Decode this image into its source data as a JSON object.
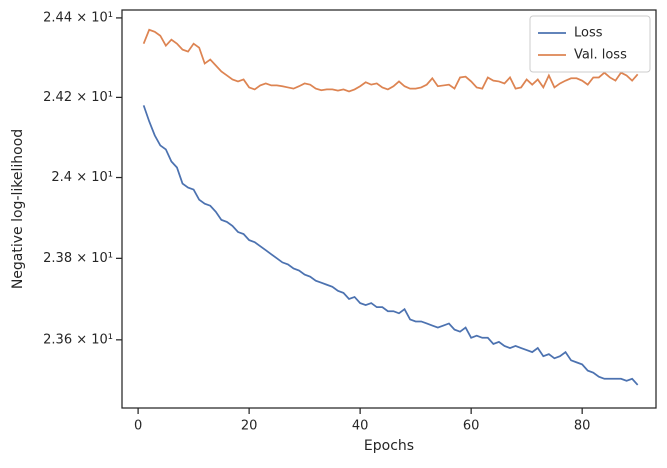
{
  "chart_data": {
    "type": "line",
    "xlabel": "Epochs",
    "ylabel": "Negative log-likelihood",
    "x": [
      1,
      2,
      3,
      4,
      5,
      6,
      7,
      8,
      9,
      10,
      11,
      12,
      13,
      14,
      15,
      16,
      17,
      18,
      19,
      20,
      21,
      22,
      23,
      24,
      25,
      26,
      27,
      28,
      29,
      30,
      31,
      32,
      33,
      34,
      35,
      36,
      37,
      38,
      39,
      40,
      41,
      42,
      43,
      44,
      45,
      46,
      47,
      48,
      49,
      50,
      51,
      52,
      53,
      54,
      55,
      56,
      57,
      58,
      59,
      60,
      61,
      62,
      63,
      64,
      65,
      66,
      67,
      68,
      69,
      70,
      71,
      72,
      73,
      74,
      75,
      76,
      77,
      78,
      79,
      80,
      81,
      82,
      83,
      84,
      85,
      86,
      87,
      88,
      89,
      90
    ],
    "series": [
      {
        "name": "Loss",
        "color": "#4c72b0",
        "values": [
          24.18,
          24.14,
          24.105,
          24.08,
          24.07,
          24.04,
          24.025,
          23.985,
          23.975,
          23.97,
          23.945,
          23.935,
          23.93,
          23.915,
          23.895,
          23.89,
          23.88,
          23.865,
          23.86,
          23.845,
          23.84,
          23.83,
          23.82,
          23.81,
          23.8,
          23.79,
          23.785,
          23.775,
          23.77,
          23.76,
          23.755,
          23.745,
          23.74,
          23.735,
          23.73,
          23.72,
          23.715,
          23.7,
          23.705,
          23.69,
          23.685,
          23.69,
          23.68,
          23.68,
          23.67,
          23.67,
          23.665,
          23.675,
          23.65,
          23.645,
          23.645,
          23.64,
          23.635,
          23.63,
          23.635,
          23.64,
          23.625,
          23.62,
          23.63,
          23.605,
          23.61,
          23.605,
          23.605,
          23.59,
          23.595,
          23.585,
          23.58,
          23.585,
          23.58,
          23.575,
          23.57,
          23.58,
          23.56,
          23.565,
          23.555,
          23.56,
          23.57,
          23.55,
          23.545,
          23.54,
          23.525,
          23.52,
          23.51,
          23.505,
          23.505,
          23.505,
          23.505,
          23.5,
          23.505,
          23.49
        ]
      },
      {
        "name": "Val. loss",
        "color": "#dd8452",
        "values": [
          24.335,
          24.37,
          24.365,
          24.355,
          24.33,
          24.345,
          24.335,
          24.32,
          24.315,
          24.335,
          24.325,
          24.285,
          24.295,
          24.28,
          24.265,
          24.255,
          24.245,
          24.24,
          24.245,
          24.225,
          24.22,
          24.23,
          24.235,
          24.23,
          24.23,
          24.228,
          24.225,
          24.222,
          24.228,
          24.235,
          24.232,
          24.222,
          24.218,
          24.22,
          24.22,
          24.217,
          24.22,
          24.215,
          24.22,
          24.228,
          24.238,
          24.232,
          24.235,
          24.225,
          24.22,
          24.228,
          24.24,
          24.228,
          24.222,
          24.222,
          24.225,
          24.232,
          24.248,
          24.228,
          24.23,
          24.232,
          24.222,
          24.25,
          24.252,
          24.24,
          24.225,
          24.222,
          24.25,
          24.242,
          24.24,
          24.235,
          24.25,
          24.222,
          24.225,
          24.245,
          24.232,
          24.245,
          24.225,
          24.255,
          24.225,
          24.235,
          24.242,
          24.248,
          24.248,
          24.242,
          24.232,
          24.25,
          24.25,
          24.262,
          24.25,
          24.242,
          24.262,
          24.255,
          24.242,
          24.258
        ]
      }
    ],
    "xlim": [
      -2.9,
      93.3
    ],
    "xticks": [
      0,
      20,
      40,
      60,
      80
    ],
    "ylim": [
      23.434,
      24.42
    ],
    "yscale": "log",
    "yticks": [
      {
        "value": 23.6,
        "label": "2.36 × 10¹"
      },
      {
        "value": 23.8,
        "label": "2.38 × 10¹"
      },
      {
        "value": 24.0,
        "label": "2.4 × 10¹"
      },
      {
        "value": 24.2,
        "label": "2.42 × 10¹"
      },
      {
        "value": 24.4,
        "label": "2.44 × 10¹"
      }
    ],
    "legend": "upper right"
  }
}
